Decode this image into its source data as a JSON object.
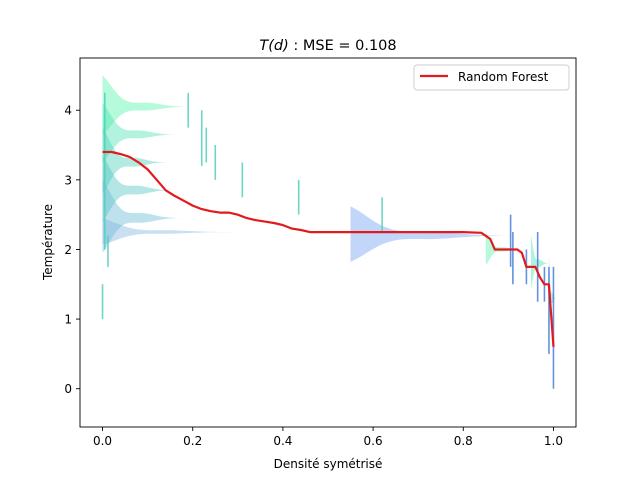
{
  "chart_data": {
    "type": "line",
    "title_italic": "T(d)",
    "title_rest": " : MSE = 0.108",
    "xlabel": "Densité symétrisé",
    "ylabel": "Température",
    "xlim": [
      -0.05,
      1.05
    ],
    "ylim": [
      -0.55,
      4.75
    ],
    "xticks": [
      0.0,
      0.2,
      0.4,
      0.6,
      0.8,
      1.0
    ],
    "xtick_labels": [
      "0.0",
      "0.2",
      "0.4",
      "0.6",
      "0.8",
      "1.0"
    ],
    "yticks": [
      0,
      1,
      2,
      3,
      4
    ],
    "ytick_labels": [
      "0",
      "1",
      "2",
      "3",
      "4"
    ],
    "grid": false,
    "legend": {
      "placement": "top-right",
      "entries": [
        {
          "label": "Random Forest",
          "color": "#e31a1c"
        }
      ]
    },
    "series": [
      {
        "name": "Random Forest",
        "color": "#e31a1c",
        "x": [
          0.0,
          0.02,
          0.04,
          0.06,
          0.08,
          0.1,
          0.12,
          0.14,
          0.16,
          0.18,
          0.2,
          0.22,
          0.24,
          0.26,
          0.28,
          0.3,
          0.32,
          0.34,
          0.36,
          0.38,
          0.4,
          0.42,
          0.44,
          0.46,
          0.5,
          0.6,
          0.7,
          0.8,
          0.84,
          0.86,
          0.87,
          0.89,
          0.92,
          0.93,
          0.94,
          0.96,
          0.97,
          0.98,
          0.99,
          1.0
        ],
        "y": [
          3.4,
          3.4,
          3.37,
          3.33,
          3.25,
          3.15,
          3.0,
          2.85,
          2.77,
          2.7,
          2.63,
          2.58,
          2.55,
          2.53,
          2.53,
          2.5,
          2.45,
          2.42,
          2.4,
          2.38,
          2.35,
          2.3,
          2.28,
          2.25,
          2.25,
          2.25,
          2.25,
          2.25,
          2.24,
          2.15,
          2.0,
          2.0,
          2.0,
          1.95,
          1.75,
          1.75,
          1.6,
          1.5,
          1.5,
          0.6
        ]
      }
    ],
    "distributions": {
      "fill_colors": [
        "#4ef2a7",
        "#44e2b0",
        "#48d2b8",
        "#4ec4c4",
        "#62b9d4",
        "#7cb4e0",
        "#6e9ef0"
      ],
      "items": [
        {
          "x": 0.0,
          "center": 4.05,
          "width": 0.2,
          "spread": 0.45
        },
        {
          "x": 0.0,
          "center": 3.65,
          "width": 0.17,
          "spread": 0.45
        },
        {
          "x": 0.0,
          "center": 3.25,
          "width": 0.15,
          "spread": 0.5
        },
        {
          "x": 0.0,
          "center": 2.85,
          "width": 0.16,
          "spread": 0.5
        },
        {
          "x": 0.0,
          "center": 2.45,
          "width": 0.18,
          "spread": 0.55
        },
        {
          "x": 0.0,
          "center": 2.25,
          "width": 0.3,
          "spread": 0.2
        },
        {
          "x": 0.55,
          "center": 2.2,
          "width": 0.37,
          "spread": 0.42
        },
        {
          "x": 0.85,
          "center": 2.0,
          "width": 0.08,
          "spread": 0.25
        },
        {
          "x": 0.95,
          "center": 1.8,
          "width": 0.04,
          "spread": 0.4
        },
        {
          "x": 0.99,
          "center": 1.3,
          "width": 0.015,
          "spread": 0.6
        }
      ]
    },
    "error_bars": [
      {
        "x": 0.0,
        "y0": 1.0,
        "y1": 1.5
      },
      {
        "x": 0.005,
        "y0": 2.0,
        "y1": 4.25
      },
      {
        "x": 0.012,
        "y0": 1.75,
        "y1": 2.2
      },
      {
        "x": 0.19,
        "y0": 3.75,
        "y1": 4.25
      },
      {
        "x": 0.22,
        "y0": 3.2,
        "y1": 4.0
      },
      {
        "x": 0.23,
        "y0": 3.25,
        "y1": 3.75
      },
      {
        "x": 0.25,
        "y0": 3.0,
        "y1": 3.5
      },
      {
        "x": 0.31,
        "y0": 2.75,
        "y1": 3.25
      },
      {
        "x": 0.435,
        "y0": 2.5,
        "y1": 3.0
      },
      {
        "x": 0.62,
        "y0": 2.25,
        "y1": 2.75
      },
      {
        "x": 0.905,
        "y0": 1.75,
        "y1": 2.5
      },
      {
        "x": 0.91,
        "y0": 1.5,
        "y1": 2.25
      },
      {
        "x": 0.94,
        "y0": 1.5,
        "y1": 2.0
      },
      {
        "x": 0.965,
        "y0": 1.25,
        "y1": 2.25
      },
      {
        "x": 0.98,
        "y0": 1.25,
        "y1": 1.75
      },
      {
        "x": 0.99,
        "y0": 0.5,
        "y1": 1.75
      },
      {
        "x": 1.0,
        "y0": 0.0,
        "y1": 1.75
      }
    ]
  }
}
